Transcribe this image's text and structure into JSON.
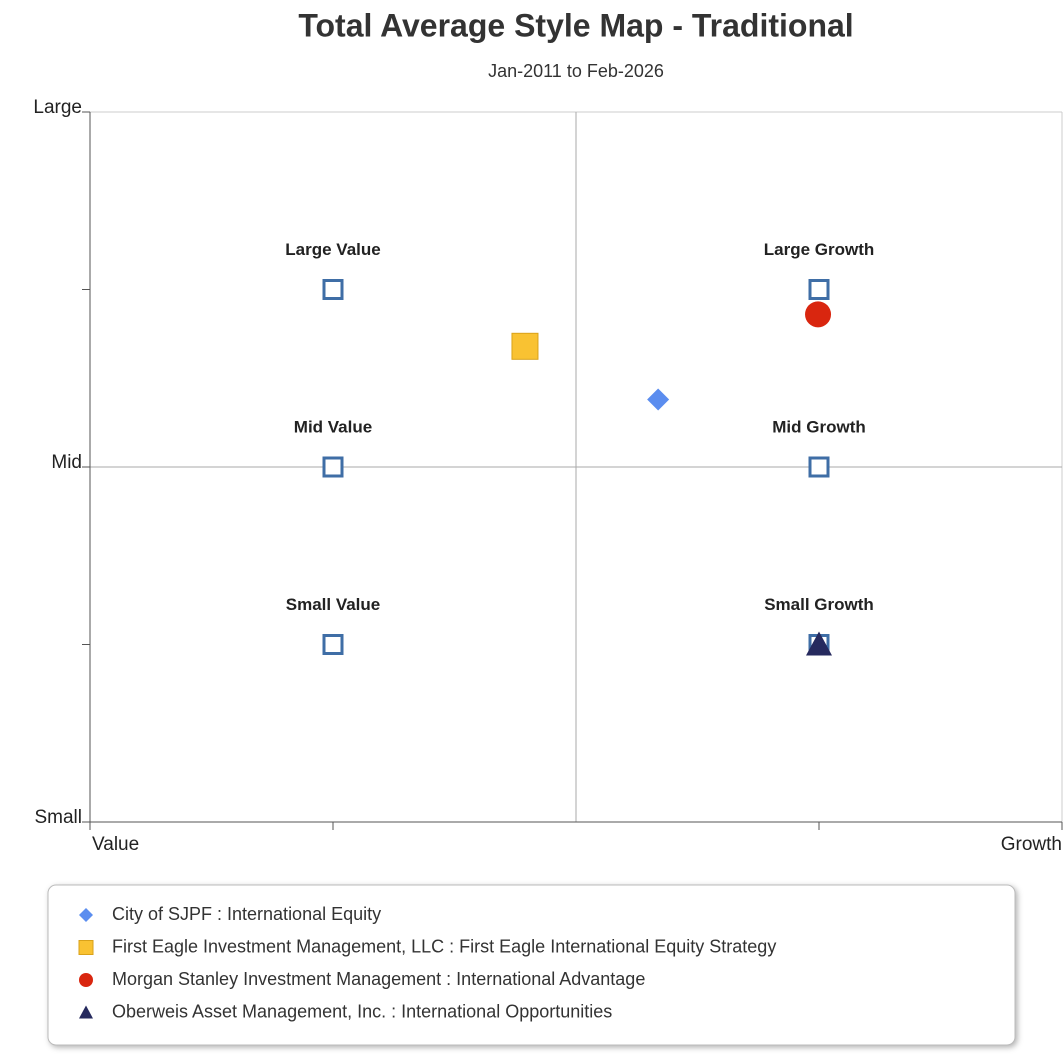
{
  "chart_data": {
    "type": "scatter",
    "title": "Total Average Style Map - Traditional",
    "subtitle": "Jan-2011 to Feb-2026",
    "xlim": [
      -1,
      1
    ],
    "ylim": [
      -1,
      1
    ],
    "xticks": [
      {
        "value": -1,
        "label": "Value"
      },
      {
        "value": 1,
        "label": "Growth"
      }
    ],
    "yticks": [
      {
        "value": -1,
        "label": "Small"
      },
      {
        "value": 0,
        "label": "Mid"
      },
      {
        "value": 1,
        "label": "Large"
      }
    ],
    "xminor": [
      -0.5,
      0.5
    ],
    "yminor": [
      -0.5,
      0.5
    ],
    "xcross": 0,
    "ycross": 0,
    "style_boxes": {
      "color": "#3f6ea6",
      "labels": [
        "Large Value",
        "Large Growth",
        "Mid Value",
        "Mid Growth",
        "Small Value",
        "Small Growth"
      ],
      "x": [
        -0.5,
        0.5,
        -0.5,
        0.5,
        -0.5,
        0.5
      ],
      "values": [
        0.5,
        0.5,
        0,
        0,
        -0.5,
        -0.5
      ]
    },
    "series": [
      {
        "name": "City of SJPF : International Equity",
        "color": "#5b8def",
        "marker": "diamond",
        "x": [
          0.169
        ],
        "values": [
          0.19
        ]
      },
      {
        "name": "First Eagle Investment Management, LLC : First Eagle International Equity Strategy",
        "color": "#f9c232",
        "marker": "square",
        "x": [
          -0.105
        ],
        "values": [
          0.34
        ]
      },
      {
        "name": "Morgan Stanley Investment Management : International Advantage",
        "color": "#d9260f",
        "marker": "circle",
        "x": [
          0.498
        ],
        "values": [
          0.43
        ]
      },
      {
        "name": "Oberweis Asset Management, Inc. : International Opportunities",
        "color": "#262a5e",
        "marker": "triangle",
        "x": [
          0.5
        ],
        "values": [
          -0.5
        ]
      }
    ]
  }
}
